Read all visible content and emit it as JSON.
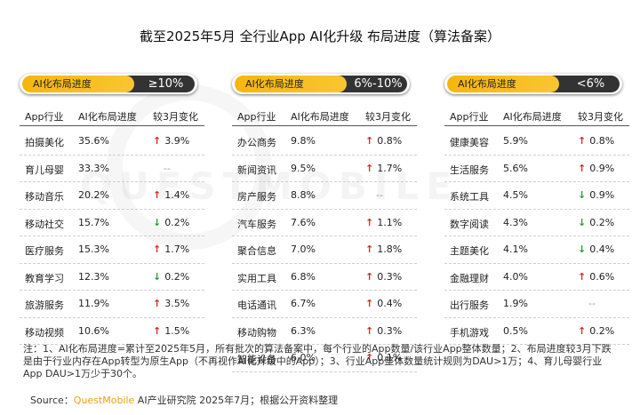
{
  "title": "截至2025年5月 全行业App AI化升级 布局进度（算法备案）",
  "watermark": "QUESTMOBILE",
  "chart_data": {
    "type": "table",
    "columns": [
      "App行业",
      "AI化布局进度",
      "较3月变化"
    ],
    "panels": [
      {
        "tag": "AI化布局进度",
        "range": "≥10%",
        "rows": [
          {
            "industry": "拍摄美化",
            "progress": "35.6%",
            "dir": "up",
            "change": "3.9%"
          },
          {
            "industry": "育儿母婴",
            "progress": "33.3%",
            "dir": "none",
            "change": "--"
          },
          {
            "industry": "移动音乐",
            "progress": "20.2%",
            "dir": "up",
            "change": "1.4%"
          },
          {
            "industry": "移动社交",
            "progress": "15.7%",
            "dir": "down",
            "change": "0.2%"
          },
          {
            "industry": "医疗服务",
            "progress": "15.3%",
            "dir": "up",
            "change": "1.7%"
          },
          {
            "industry": "教育学习",
            "progress": "12.3%",
            "dir": "down",
            "change": "0.2%"
          },
          {
            "industry": "旅游服务",
            "progress": "11.9%",
            "dir": "up",
            "change": "3.5%"
          },
          {
            "industry": "移动视频",
            "progress": "10.6%",
            "dir": "up",
            "change": "1.5%"
          }
        ]
      },
      {
        "tag": "AI化布局进度",
        "range": "6%-10%",
        "rows": [
          {
            "industry": "办公商务",
            "progress": "9.8%",
            "dir": "up",
            "change": "0.8%"
          },
          {
            "industry": "新闻资讯",
            "progress": "9.5%",
            "dir": "up",
            "change": "1.7%"
          },
          {
            "industry": "房产服务",
            "progress": "8.8%",
            "dir": "none",
            "change": "--"
          },
          {
            "industry": "汽车服务",
            "progress": "7.6%",
            "dir": "up",
            "change": "1.1%"
          },
          {
            "industry": "聚合信息",
            "progress": "7.0%",
            "dir": "up",
            "change": "1.8%"
          },
          {
            "industry": "实用工具",
            "progress": "6.8%",
            "dir": "up",
            "change": "0.3%"
          },
          {
            "industry": "电话通讯",
            "progress": "6.7%",
            "dir": "up",
            "change": "0.4%"
          },
          {
            "industry": "移动购物",
            "progress": "6.3%",
            "dir": "up",
            "change": "0.3%"
          },
          {
            "industry": "智能设备",
            "progress": "6.0%",
            "dir": "up",
            "change": "0.1%"
          }
        ]
      },
      {
        "tag": "AI化布局进度",
        "range": "<6%",
        "rows": [
          {
            "industry": "健康美容",
            "progress": "5.9%",
            "dir": "up",
            "change": "0.8%"
          },
          {
            "industry": "生活服务",
            "progress": "5.6%",
            "dir": "up",
            "change": "0.9%"
          },
          {
            "industry": "系统工具",
            "progress": "4.5%",
            "dir": "down",
            "change": "0.9%"
          },
          {
            "industry": "数字阅读",
            "progress": "4.3%",
            "dir": "down",
            "change": "0.2%"
          },
          {
            "industry": "主题美化",
            "progress": "4.1%",
            "dir": "down",
            "change": "0.4%"
          },
          {
            "industry": "金融理财",
            "progress": "4.0%",
            "dir": "up",
            "change": "0.6%"
          },
          {
            "industry": "出行服务",
            "progress": "1.9%",
            "dir": "none",
            "change": "--"
          },
          {
            "industry": "手机游戏",
            "progress": "0.5%",
            "dir": "up",
            "change": "0.2%"
          }
        ]
      }
    ]
  },
  "footnote": "注：1、AI化布局进度=累计至2025年5月，所有批次的算法备案中，每个行业的App数量/该行业App整体数量；2、布局进度较3月下跌是由于行业内存在App转型为原生App（不再视作AI化升级中的App）；3、行业App整体数量统计规则为DAU>1万；4、育儿母婴行业App DAU>1万少于30个。",
  "source_label": "Source：",
  "source_brand": "QuestMobile",
  "source_rest": " AI产业研究院 2025年7月；根据公开资料整理",
  "colors": {
    "accent": "#f6b60d",
    "brand": "#e8a317",
    "up": "#d9252a",
    "down": "#2a9a3a",
    "pill_dark": "#333333"
  },
  "icons": {
    "up": "arrow-up-icon",
    "down": "arrow-down-icon"
  }
}
